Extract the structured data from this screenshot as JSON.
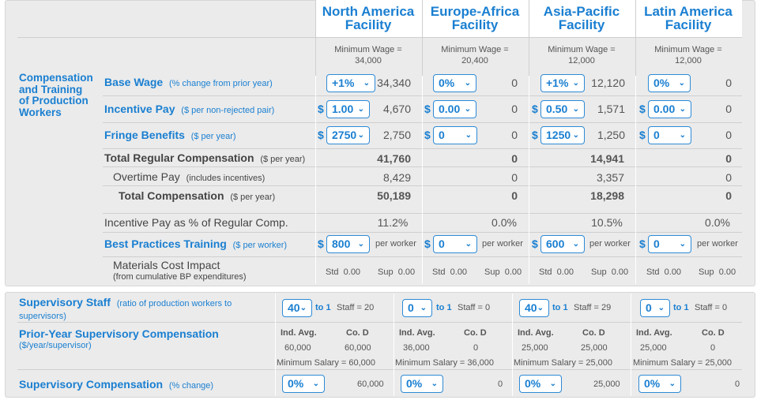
{
  "facilities": [
    {
      "name_line1": "North America",
      "name_line2": "Facility",
      "min_wage_label": "Minimum Wage =",
      "min_wage": "34,000"
    },
    {
      "name_line1": "Europe-Africa",
      "name_line2": "Facility",
      "min_wage_label": "Minimum Wage =",
      "min_wage": "20,400"
    },
    {
      "name_line1": "Asia-Pacific",
      "name_line2": "Facility",
      "min_wage_label": "Minimum Wage =",
      "min_wage": "12,000"
    },
    {
      "name_line1": "Latin America",
      "name_line2": "Facility",
      "min_wage_label": "Minimum Wage =",
      "min_wage": "12,000"
    }
  ],
  "section_title": {
    "line1": "Compensation",
    "line2": "and Training",
    "line3": "of Production",
    "line4": "Workers"
  },
  "rows": {
    "base_wage": {
      "label": "Base Wage",
      "sub": "(% change from prior year)",
      "selects": [
        "+1%",
        "0%",
        "+1%",
        "0%"
      ],
      "values": [
        "34,340",
        "0",
        "12,120",
        "0"
      ]
    },
    "incentive_pay": {
      "label": "Incentive Pay",
      "sub": "($ per non-rejected pair)",
      "currency": "$",
      "selects": [
        "1.00",
        "0.00",
        "0.50",
        "0.00"
      ],
      "values": [
        "4,670",
        "0",
        "1,571",
        "0"
      ]
    },
    "fringe": {
      "label": "Fringe Benefits",
      "sub": "($ per year)",
      "currency": "$",
      "selects": [
        "2750",
        "0",
        "1250",
        "0"
      ],
      "values": [
        "2,750",
        "0",
        "1,250",
        "0"
      ]
    },
    "total_regular": {
      "label": "Total Regular Compensation",
      "sub": "($ per year)",
      "values": [
        "41,760",
        "0",
        "14,941",
        "0"
      ]
    },
    "overtime": {
      "label": "Overtime Pay",
      "sub": "(includes incentives)",
      "values": [
        "8,429",
        "0",
        "3,357",
        "0"
      ]
    },
    "total_comp": {
      "label": "Total Compensation",
      "sub": "($ per year)",
      "values": [
        "50,189",
        "0",
        "18,298",
        "0"
      ]
    },
    "incentive_pct": {
      "label": "Incentive Pay as % of Regular Comp.",
      "values": [
        "11.2%",
        "0.0%",
        "10.5%",
        "0.0%"
      ]
    },
    "bp_training": {
      "label": "Best Practices Training",
      "sub": "($ per worker)",
      "currency": "$",
      "selects": [
        "800",
        "0",
        "600",
        "0"
      ],
      "unit": "per worker"
    },
    "materials": {
      "label": "Materials Cost Impact",
      "sub": "(from cumulative BP expenditures)",
      "std_label": "Std",
      "sup_label": "Sup",
      "values": [
        [
          "0.00",
          "0.00"
        ],
        [
          "0.00",
          "0.00"
        ],
        [
          "0.00",
          "0.00"
        ],
        [
          "0.00",
          "0.00"
        ]
      ]
    }
  },
  "supervisory": {
    "staff": {
      "label": "Supervisory Staff",
      "sub": "(ratio of production workers to supervisors)",
      "selects": [
        "40",
        "0",
        "40",
        "0"
      ],
      "to_label": "to 1",
      "staff_label": "Staff =",
      "staff_values": [
        "20",
        "0",
        "29",
        "0"
      ]
    },
    "prior": {
      "label": "Prior-Year Supervisory Compensation",
      "sub": "($/year/supervisor)",
      "ind_label": "Ind. Avg.",
      "co_label": "Co. D",
      "ind_values": [
        "60,000",
        "36,000",
        "25,000",
        "25,000"
      ],
      "co_values": [
        "60,000",
        "0",
        "25,000",
        "0"
      ],
      "min_salary_label": "Minimum Salary =",
      "min_salary": [
        "60,000",
        "36,000",
        "25,000",
        "25,000"
      ]
    },
    "comp": {
      "label": "Supervisory Compensation",
      "sub": "(% change)",
      "selects": [
        "0%",
        "0%",
        "0%",
        "0%"
      ],
      "values": [
        "60,000",
        "0",
        "25,000",
        "0"
      ]
    }
  },
  "colors": {
    "accent": "#1a7fd1",
    "panel": "#ebebeb",
    "text": "#444444"
  }
}
